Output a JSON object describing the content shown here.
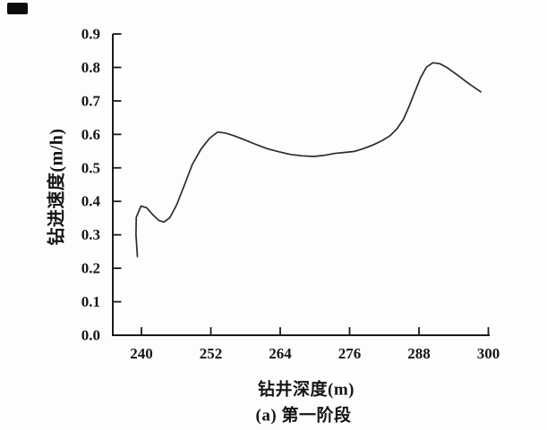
{
  "figure": {
    "background": "#fdfdfd"
  },
  "chart_data": {
    "type": "line",
    "title": "",
    "xlabel": "钻井深度(m)",
    "ylabel": "钻进速度(m/h)",
    "caption": "(a) 第一阶段",
    "x_tick_labels": [
      "240",
      "252",
      "264",
      "276",
      "288",
      "300"
    ],
    "x_tick_values": [
      240,
      252,
      264,
      276,
      288,
      300
    ],
    "y_tick_labels": [
      "0.0",
      "0.1",
      "0.2",
      "0.3",
      "0.4",
      "0.5",
      "0.6",
      "0.7",
      "0.8",
      "0.9"
    ],
    "y_tick_values": [
      0,
      0.1,
      0.2,
      0.3,
      0.4,
      0.5,
      0.6,
      0.7,
      0.8,
      0.9
    ],
    "xlim": [
      235,
      300.3
    ],
    "ylim": [
      0,
      0.9
    ],
    "grid": false,
    "legend": "none",
    "axis_color": "#1a1a1a",
    "series": [
      {
        "color": "#2b2b2b",
        "points": [
          [
            239.3,
            0.235
          ],
          [
            239.05,
            0.3
          ],
          [
            239.1,
            0.352
          ],
          [
            239.9,
            0.386
          ],
          [
            240.9,
            0.381
          ],
          [
            241.9,
            0.361
          ],
          [
            243.0,
            0.343
          ],
          [
            243.9,
            0.338
          ],
          [
            244.9,
            0.351
          ],
          [
            246.1,
            0.39
          ],
          [
            247.4,
            0.447
          ],
          [
            248.8,
            0.51
          ],
          [
            250.3,
            0.556
          ],
          [
            251.8,
            0.589
          ],
          [
            253.2,
            0.607
          ],
          [
            254.5,
            0.604
          ],
          [
            256.0,
            0.596
          ],
          [
            257.8,
            0.584
          ],
          [
            259.8,
            0.57
          ],
          [
            261.8,
            0.557
          ],
          [
            263.8,
            0.548
          ],
          [
            265.8,
            0.54
          ],
          [
            267.8,
            0.536
          ],
          [
            269.8,
            0.534
          ],
          [
            271.5,
            0.537
          ],
          [
            273.3,
            0.543
          ],
          [
            275.0,
            0.546
          ],
          [
            276.8,
            0.549
          ],
          [
            278.3,
            0.557
          ],
          [
            280.0,
            0.568
          ],
          [
            281.6,
            0.581
          ],
          [
            283.0,
            0.596
          ],
          [
            284.2,
            0.617
          ],
          [
            285.3,
            0.645
          ],
          [
            286.3,
            0.684
          ],
          [
            287.3,
            0.728
          ],
          [
            288.3,
            0.77
          ],
          [
            289.3,
            0.801
          ],
          [
            290.4,
            0.814
          ],
          [
            291.6,
            0.811
          ],
          [
            292.9,
            0.799
          ],
          [
            294.6,
            0.778
          ],
          [
            296.6,
            0.752
          ],
          [
            298.7,
            0.727
          ]
        ]
      }
    ]
  }
}
